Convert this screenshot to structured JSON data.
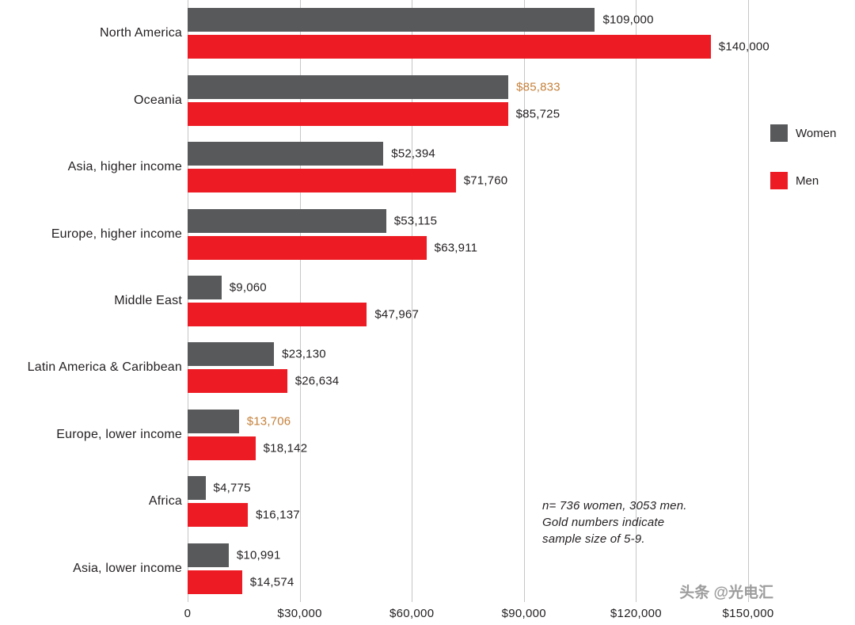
{
  "chart_data": {
    "type": "bar",
    "orientation": "horizontal",
    "title": "",
    "xlabel": "",
    "ylabel": "",
    "xlim": [
      0,
      150000
    ],
    "grid": "vertical",
    "legend_position": "right",
    "categories": [
      "North America",
      "Oceania",
      "Asia, higher income",
      "Europe, higher income",
      "Middle East",
      "Latin America & Caribbean",
      "Europe, lower income",
      "Africa",
      "Asia, lower income"
    ],
    "series": [
      {
        "name": "Women",
        "color": "#58595b",
        "values": [
          109000,
          85833,
          52394,
          53115,
          9060,
          23130,
          13706,
          4775,
          10991
        ],
        "labels": [
          "$109,000",
          "$85,833",
          "$52,394",
          "$53,115",
          "$9,060",
          "$23,130",
          "$13,706",
          "$4,775",
          "$10,991"
        ],
        "gold": [
          false,
          true,
          false,
          false,
          false,
          false,
          true,
          false,
          false
        ]
      },
      {
        "name": "Men",
        "color": "#ed1c24",
        "values": [
          140000,
          85725,
          71760,
          63911,
          47967,
          26634,
          18142,
          16137,
          14574
        ],
        "labels": [
          "$140,000",
          "$85,725",
          "$71,760",
          "$63,911",
          "$47,967",
          "$26,634",
          "$18,142",
          "$16,137",
          "$14,574"
        ],
        "gold": [
          false,
          false,
          false,
          false,
          false,
          false,
          false,
          false,
          false
        ]
      }
    ],
    "x_ticks": [
      {
        "value": 0,
        "label": "0"
      },
      {
        "value": 30000,
        "label": "$30,000"
      },
      {
        "value": 60000,
        "label": "$60,000"
      },
      {
        "value": 90000,
        "label": "$90,000"
      },
      {
        "value": 120000,
        "label": "$120,000"
      },
      {
        "value": 150000,
        "label": "$150,000"
      }
    ],
    "gold_color": "#c5803a",
    "legend": [
      {
        "label": "Women",
        "color": "#58595b"
      },
      {
        "label": "Men",
        "color": "#ed1c24"
      }
    ],
    "annotation": [
      "n= 736 women, 3053 men.",
      "Gold numbers indicate",
      "sample size of 5-9."
    ]
  },
  "watermark": "头条 @光电汇"
}
